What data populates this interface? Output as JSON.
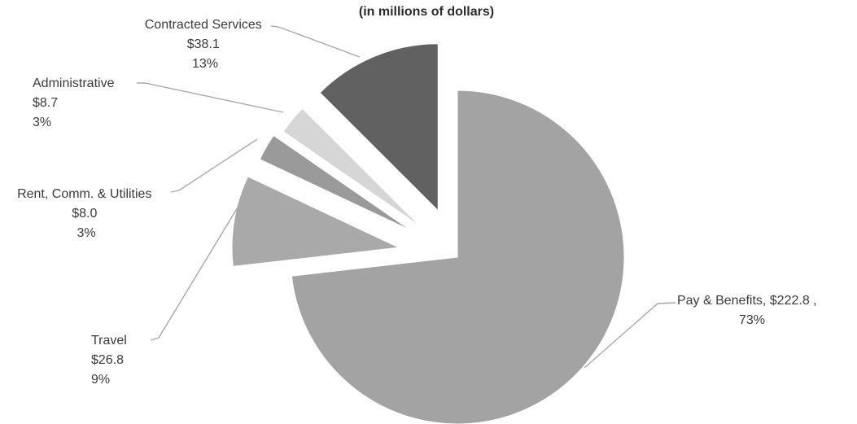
{
  "chart_data": {
    "type": "pie",
    "title": "",
    "subtitle": "(in millions of dollars)",
    "exploded": true,
    "legend": "none",
    "slices": [
      {
        "category": "Pay & Benefits",
        "value_label": "$222.8",
        "percent_label": "73%",
        "value": 222.8,
        "percent": 73,
        "color": "#a3a3a3"
      },
      {
        "category": "Travel",
        "value_label": "$26.8",
        "percent_label": "9%",
        "value": 26.8,
        "percent": 9,
        "color": "#a9a9a9"
      },
      {
        "category": "Rent, Comm. & Utilities",
        "value_label": "$8.0",
        "percent_label": "3%",
        "value": 8.0,
        "percent": 3,
        "color": "#9a9a9a"
      },
      {
        "category": "Administrative",
        "value_label": "$8.7",
        "percent_label": "3%",
        "value": 8.7,
        "percent": 3,
        "color": "#d6d6d6"
      },
      {
        "category": "Contracted Services",
        "value_label": "$38.1",
        "percent_label": "13%",
        "value": 38.1,
        "percent": 13,
        "color": "#616161"
      }
    ]
  }
}
